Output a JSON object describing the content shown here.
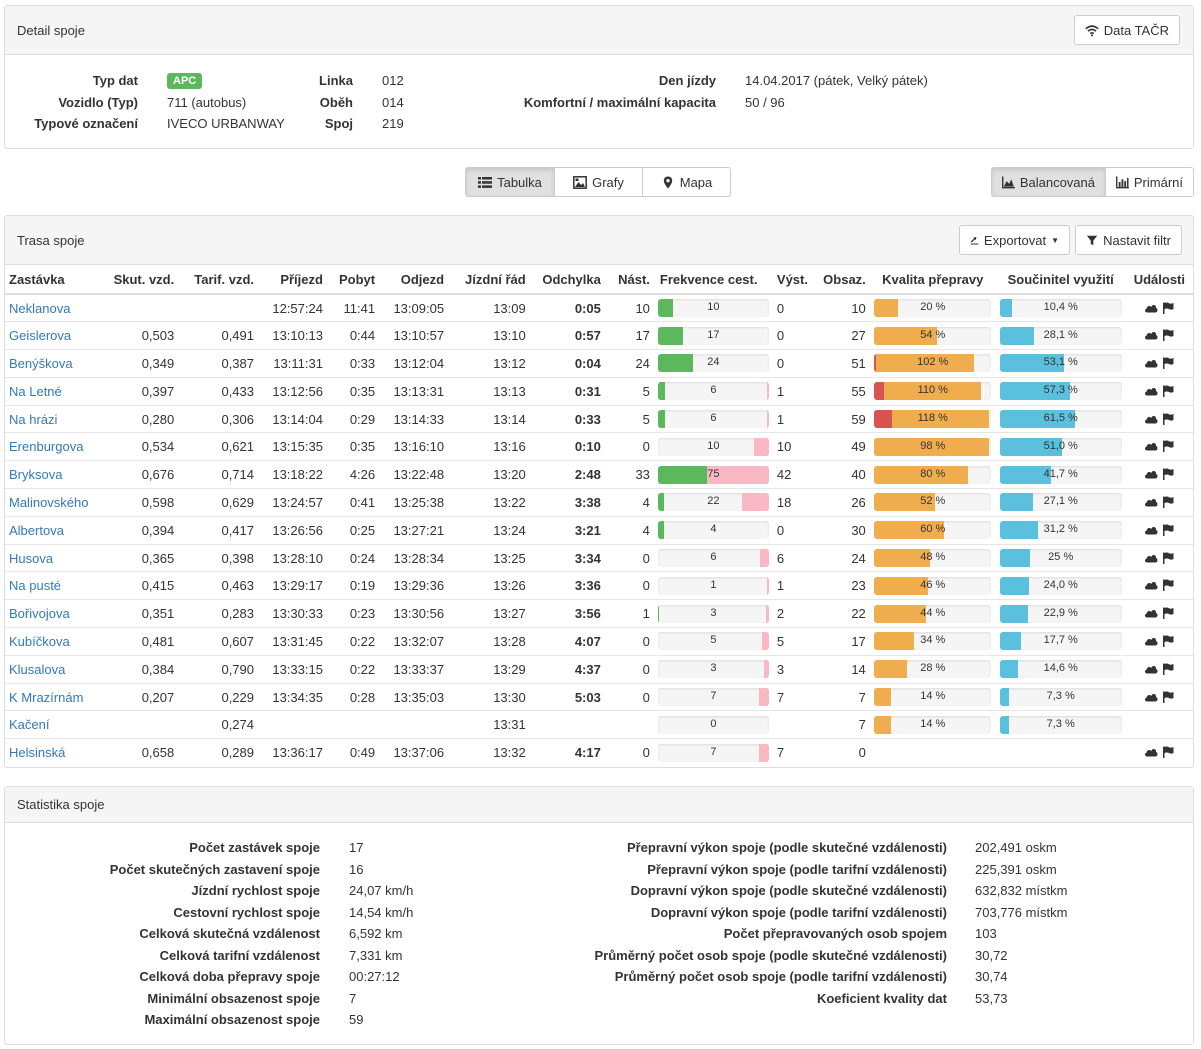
{
  "detail": {
    "title": "Detail spoje",
    "data_button": "Data TAČR",
    "left": [
      {
        "label": "Typ dat",
        "value": "APC",
        "badge": true
      },
      {
        "label": "Vozidlo (Typ)",
        "value": "711 (autobus)"
      },
      {
        "label": "Typové označení",
        "value": "IVECO URBANWAY"
      }
    ],
    "middle": [
      {
        "label": "Linka",
        "value": "012"
      },
      {
        "label": "Oběh",
        "value": "014"
      },
      {
        "label": "Spoj",
        "value": "219"
      }
    ],
    "right": [
      {
        "label": "Den jízdy",
        "value": "14.04.2017 (pátek, Velký pátek)"
      },
      {
        "label": "Komfortní / maximální kapacita",
        "value": "50 / 96"
      }
    ]
  },
  "views": {
    "tabs": [
      "Tabulka",
      "Grafy",
      "Mapa"
    ],
    "active_tab": "Tabulka",
    "modes": [
      "Balancovaná",
      "Primární"
    ],
    "active_mode": "Balancovaná"
  },
  "route": {
    "title": "Trasa spoje",
    "export_button": "Exportovat",
    "filter_button": "Nastavit filtr",
    "columns": [
      "Zastávka",
      "Skut. vzd.",
      "Tarif. vzd.",
      "Příjezd",
      "Pobyt",
      "Odjezd",
      "Jízdní řád",
      "Odchylka",
      "Nást.",
      "Frekvence cest.",
      "Výst.",
      "Obsaz.",
      "Kvalita přepravy",
      "Součinitel využití",
      "Události"
    ],
    "rows": [
      {
        "stop": "Neklanova",
        "skut": "",
        "tarif": "",
        "arr": "12:57:24",
        "stay": "11:41",
        "dep": "13:09:05",
        "sched": "13:09",
        "dev": "0:05",
        "dev_color": "green",
        "board": "10",
        "freq_board": 10,
        "freq_alight": 0,
        "freq_label": "10",
        "alight": "0",
        "occ": "10",
        "quality": 20,
        "quality_label": "20 %",
        "util": 10.4,
        "util_label": "10,4 %",
        "events": true
      },
      {
        "stop": "Geislerova",
        "skut": "0,503",
        "tarif": "0,491",
        "arr": "13:10:13",
        "stay": "0:44",
        "dep": "13:10:57",
        "sched": "13:10",
        "dev": "0:57",
        "dev_color": "green",
        "board": "17",
        "freq_board": 17,
        "freq_alight": 0,
        "freq_label": "17",
        "alight": "0",
        "occ": "27",
        "quality": 54,
        "quality_label": "54 %",
        "util": 28.1,
        "util_label": "28,1 %",
        "events": true
      },
      {
        "stop": "Benýškova",
        "skut": "0,349",
        "tarif": "0,387",
        "arr": "13:11:31",
        "stay": "0:33",
        "dep": "13:12:04",
        "sched": "13:12",
        "dev": "0:04",
        "dev_color": "green",
        "board": "24",
        "freq_board": 24,
        "freq_alight": 0,
        "freq_label": "24",
        "alight": "0",
        "occ": "51",
        "quality": 102,
        "quality_label": "102 %",
        "util": 53.1,
        "util_label": "53,1 %",
        "events": true
      },
      {
        "stop": "Na Letné",
        "skut": "0,397",
        "tarif": "0,433",
        "arr": "13:12:56",
        "stay": "0:35",
        "dep": "13:13:31",
        "sched": "13:13",
        "dev": "0:31",
        "dev_color": "green",
        "board": "5",
        "freq_board": 5,
        "freq_alight": 1,
        "freq_label": "6",
        "alight": "1",
        "occ": "55",
        "quality": 110,
        "quality_label": "110 %",
        "util": 57.3,
        "util_label": "57,3 %",
        "events": true
      },
      {
        "stop": "Na hrázi",
        "skut": "0,280",
        "tarif": "0,306",
        "arr": "13:14:04",
        "stay": "0:29",
        "dep": "13:14:33",
        "sched": "13:14",
        "dev": "0:33",
        "dev_color": "green",
        "board": "5",
        "freq_board": 5,
        "freq_alight": 1,
        "freq_label": "6",
        "alight": "1",
        "occ": "59",
        "quality": 118,
        "quality_label": "118 %",
        "util": 61.5,
        "util_label": "61,5 %",
        "events": true
      },
      {
        "stop": "Erenburgova",
        "skut": "0,534",
        "tarif": "0,621",
        "arr": "13:15:35",
        "stay": "0:35",
        "dep": "13:16:10",
        "sched": "13:16",
        "dev": "0:10",
        "dev_color": "green",
        "board": "0",
        "freq_board": 0,
        "freq_alight": 10,
        "freq_label": "10",
        "alight": "10",
        "occ": "49",
        "quality": 98,
        "quality_label": "98 %",
        "util": 51.0,
        "util_label": "51,0 %",
        "events": true
      },
      {
        "stop": "Bryksova",
        "skut": "0,676",
        "tarif": "0,714",
        "arr": "13:18:22",
        "stay": "4:26",
        "dep": "13:22:48",
        "sched": "13:20",
        "dev": "2:48",
        "dev_color": "orange",
        "board": "33",
        "freq_board": 33,
        "freq_alight": 42,
        "freq_label": "75",
        "alight": "42",
        "occ": "40",
        "quality": 80,
        "quality_label": "80 %",
        "util": 41.7,
        "util_label": "41,7 %",
        "events": true
      },
      {
        "stop": "Malinovského",
        "skut": "0,598",
        "tarif": "0,629",
        "arr": "13:24:57",
        "stay": "0:41",
        "dep": "13:25:38",
        "sched": "13:22",
        "dev": "3:38",
        "dev_color": "orange",
        "board": "4",
        "freq_board": 4,
        "freq_alight": 18,
        "freq_label": "22",
        "alight": "18",
        "occ": "26",
        "quality": 52,
        "quality_label": "52 %",
        "util": 27.1,
        "util_label": "27,1 %",
        "events": true
      },
      {
        "stop": "Albertova",
        "skut": "0,394",
        "tarif": "0,417",
        "arr": "13:26:56",
        "stay": "0:25",
        "dep": "13:27:21",
        "sched": "13:24",
        "dev": "3:21",
        "dev_color": "orange",
        "board": "4",
        "freq_board": 4,
        "freq_alight": 0,
        "freq_label": "4",
        "alight": "0",
        "occ": "30",
        "quality": 60,
        "quality_label": "60 %",
        "util": 31.2,
        "util_label": "31,2 %",
        "events": true
      },
      {
        "stop": "Husova",
        "skut": "0,365",
        "tarif": "0,398",
        "arr": "13:28:10",
        "stay": "0:24",
        "dep": "13:28:34",
        "sched": "13:25",
        "dev": "3:34",
        "dev_color": "orange",
        "board": "0",
        "freq_board": 0,
        "freq_alight": 6,
        "freq_label": "6",
        "alight": "6",
        "occ": "24",
        "quality": 48,
        "quality_label": "48 %",
        "util": 25,
        "util_label": "25 %",
        "events": true
      },
      {
        "stop": "Na pusté",
        "skut": "0,415",
        "tarif": "0,463",
        "arr": "13:29:17",
        "stay": "0:19",
        "dep": "13:29:36",
        "sched": "13:26",
        "dev": "3:36",
        "dev_color": "orange",
        "board": "0",
        "freq_board": 0,
        "freq_alight": 1,
        "freq_label": "1",
        "alight": "1",
        "occ": "23",
        "quality": 46,
        "quality_label": "46 %",
        "util": 24.0,
        "util_label": "24,0 %",
        "events": true
      },
      {
        "stop": "Bořivojova",
        "skut": "0,351",
        "tarif": "0,283",
        "arr": "13:30:33",
        "stay": "0:23",
        "dep": "13:30:56",
        "sched": "13:27",
        "dev": "3:56",
        "dev_color": "orange",
        "board": "1",
        "freq_board": 1,
        "freq_alight": 2,
        "freq_label": "3",
        "alight": "2",
        "occ": "22",
        "quality": 44,
        "quality_label": "44 %",
        "util": 22.9,
        "util_label": "22,9 %",
        "events": true
      },
      {
        "stop": "Kubíčkova",
        "skut": "0,481",
        "tarif": "0,607",
        "arr": "13:31:45",
        "stay": "0:22",
        "dep": "13:32:07",
        "sched": "13:28",
        "dev": "4:07",
        "dev_color": "orange",
        "board": "0",
        "freq_board": 0,
        "freq_alight": 5,
        "freq_label": "5",
        "alight": "5",
        "occ": "17",
        "quality": 34,
        "quality_label": "34 %",
        "util": 17.7,
        "util_label": "17,7 %",
        "events": true
      },
      {
        "stop": "Klusalova",
        "skut": "0,384",
        "tarif": "0,790",
        "arr": "13:33:15",
        "stay": "0:22",
        "dep": "13:33:37",
        "sched": "13:29",
        "dev": "4:37",
        "dev_color": "orange",
        "board": "0",
        "freq_board": 0,
        "freq_alight": 3,
        "freq_label": "3",
        "alight": "3",
        "occ": "14",
        "quality": 28,
        "quality_label": "28 %",
        "util": 14.6,
        "util_label": "14,6 %",
        "events": true
      },
      {
        "stop": "K Mrazírnám",
        "skut": "0,207",
        "tarif": "0,229",
        "arr": "13:34:35",
        "stay": "0:28",
        "dep": "13:35:03",
        "sched": "13:30",
        "dev": "5:03",
        "dev_color": "red",
        "board": "0",
        "freq_board": 0,
        "freq_alight": 7,
        "freq_label": "7",
        "alight": "7",
        "occ": "7",
        "quality": 14,
        "quality_label": "14 %",
        "util": 7.3,
        "util_label": "7,3 %",
        "events": true
      },
      {
        "stop": "Kačení",
        "skut": "",
        "tarif": "0,274",
        "arr": "",
        "stay": "",
        "dep": "",
        "sched": "13:31",
        "dev": "",
        "dev_color": "",
        "board": "",
        "freq_board": 0,
        "freq_alight": 0,
        "freq_label": "0",
        "alight": "",
        "occ": "7",
        "quality": 14,
        "quality_label": "14 %",
        "util": 7.3,
        "util_label": "7,3 %",
        "events": false
      },
      {
        "stop": "Helsinská",
        "skut": "0,658",
        "tarif": "0,289",
        "arr": "13:36:17",
        "stay": "0:49",
        "dep": "13:37:06",
        "sched": "13:32",
        "dev": "4:17",
        "dev_color": "orange",
        "board": "0",
        "freq_board": 0,
        "freq_alight": 7,
        "freq_label": "7",
        "alight": "7",
        "occ": "0",
        "quality": null,
        "quality_label": "",
        "util": null,
        "util_label": "",
        "events": true
      }
    ]
  },
  "stats": {
    "title": "Statistika spoje",
    "left": [
      {
        "label": "Počet zastávek spoje",
        "value": "17"
      },
      {
        "label": "Počet skutečných zastavení spoje",
        "value": "16"
      },
      {
        "label": "Jízdní rychlost spoje",
        "value": "24,07 km/h"
      },
      {
        "label": "Cestovní rychlost spoje",
        "value": "14,54 km/h"
      },
      {
        "label": "Celková skutečná vzdálenost",
        "value": "6,592 km"
      },
      {
        "label": "Celková tarifní vzdálenost",
        "value": "7,331 km"
      },
      {
        "label": "Celková doba přepravy spoje",
        "value": "00:27:12"
      },
      {
        "label": "Minimální obsazenost spoje",
        "value": "7"
      },
      {
        "label": "Maximální obsazenost spoje",
        "value": "59"
      }
    ],
    "right": [
      {
        "label": "Přepravní výkon spoje (podle skutečné vzdálenosti)",
        "value": "202,491 oskm"
      },
      {
        "label": "Přepravní výkon spoje (podle tarifní vzdálenosti)",
        "value": "225,391 oskm"
      },
      {
        "label": "Dopravní výkon spoje (podle skutečné vzdálenosti)",
        "value": "632,832 místkm"
      },
      {
        "label": "Dopravní výkon spoje (podle tarifní vzdálenosti)",
        "value": "703,776 místkm"
      },
      {
        "label": "Počet přepravovaných osob spojem",
        "value": "103"
      },
      {
        "label": "Průměrný počet osob spoje (podle skutečné vzdálenosti)",
        "value": "30,72"
      },
      {
        "label": "Průměrný počet osob spoje (podle tarifní vzdálenosti)",
        "value": "30,74"
      },
      {
        "label": "Koeficient kvality dat",
        "value": "53,73"
      }
    ]
  },
  "colors": {
    "link": "#337ab7",
    "green": "#5cb85c",
    "orange": "#f0ad4e",
    "red": "#d9534f",
    "blue": "#5bc0de",
    "pink": "#f9b8c4"
  }
}
